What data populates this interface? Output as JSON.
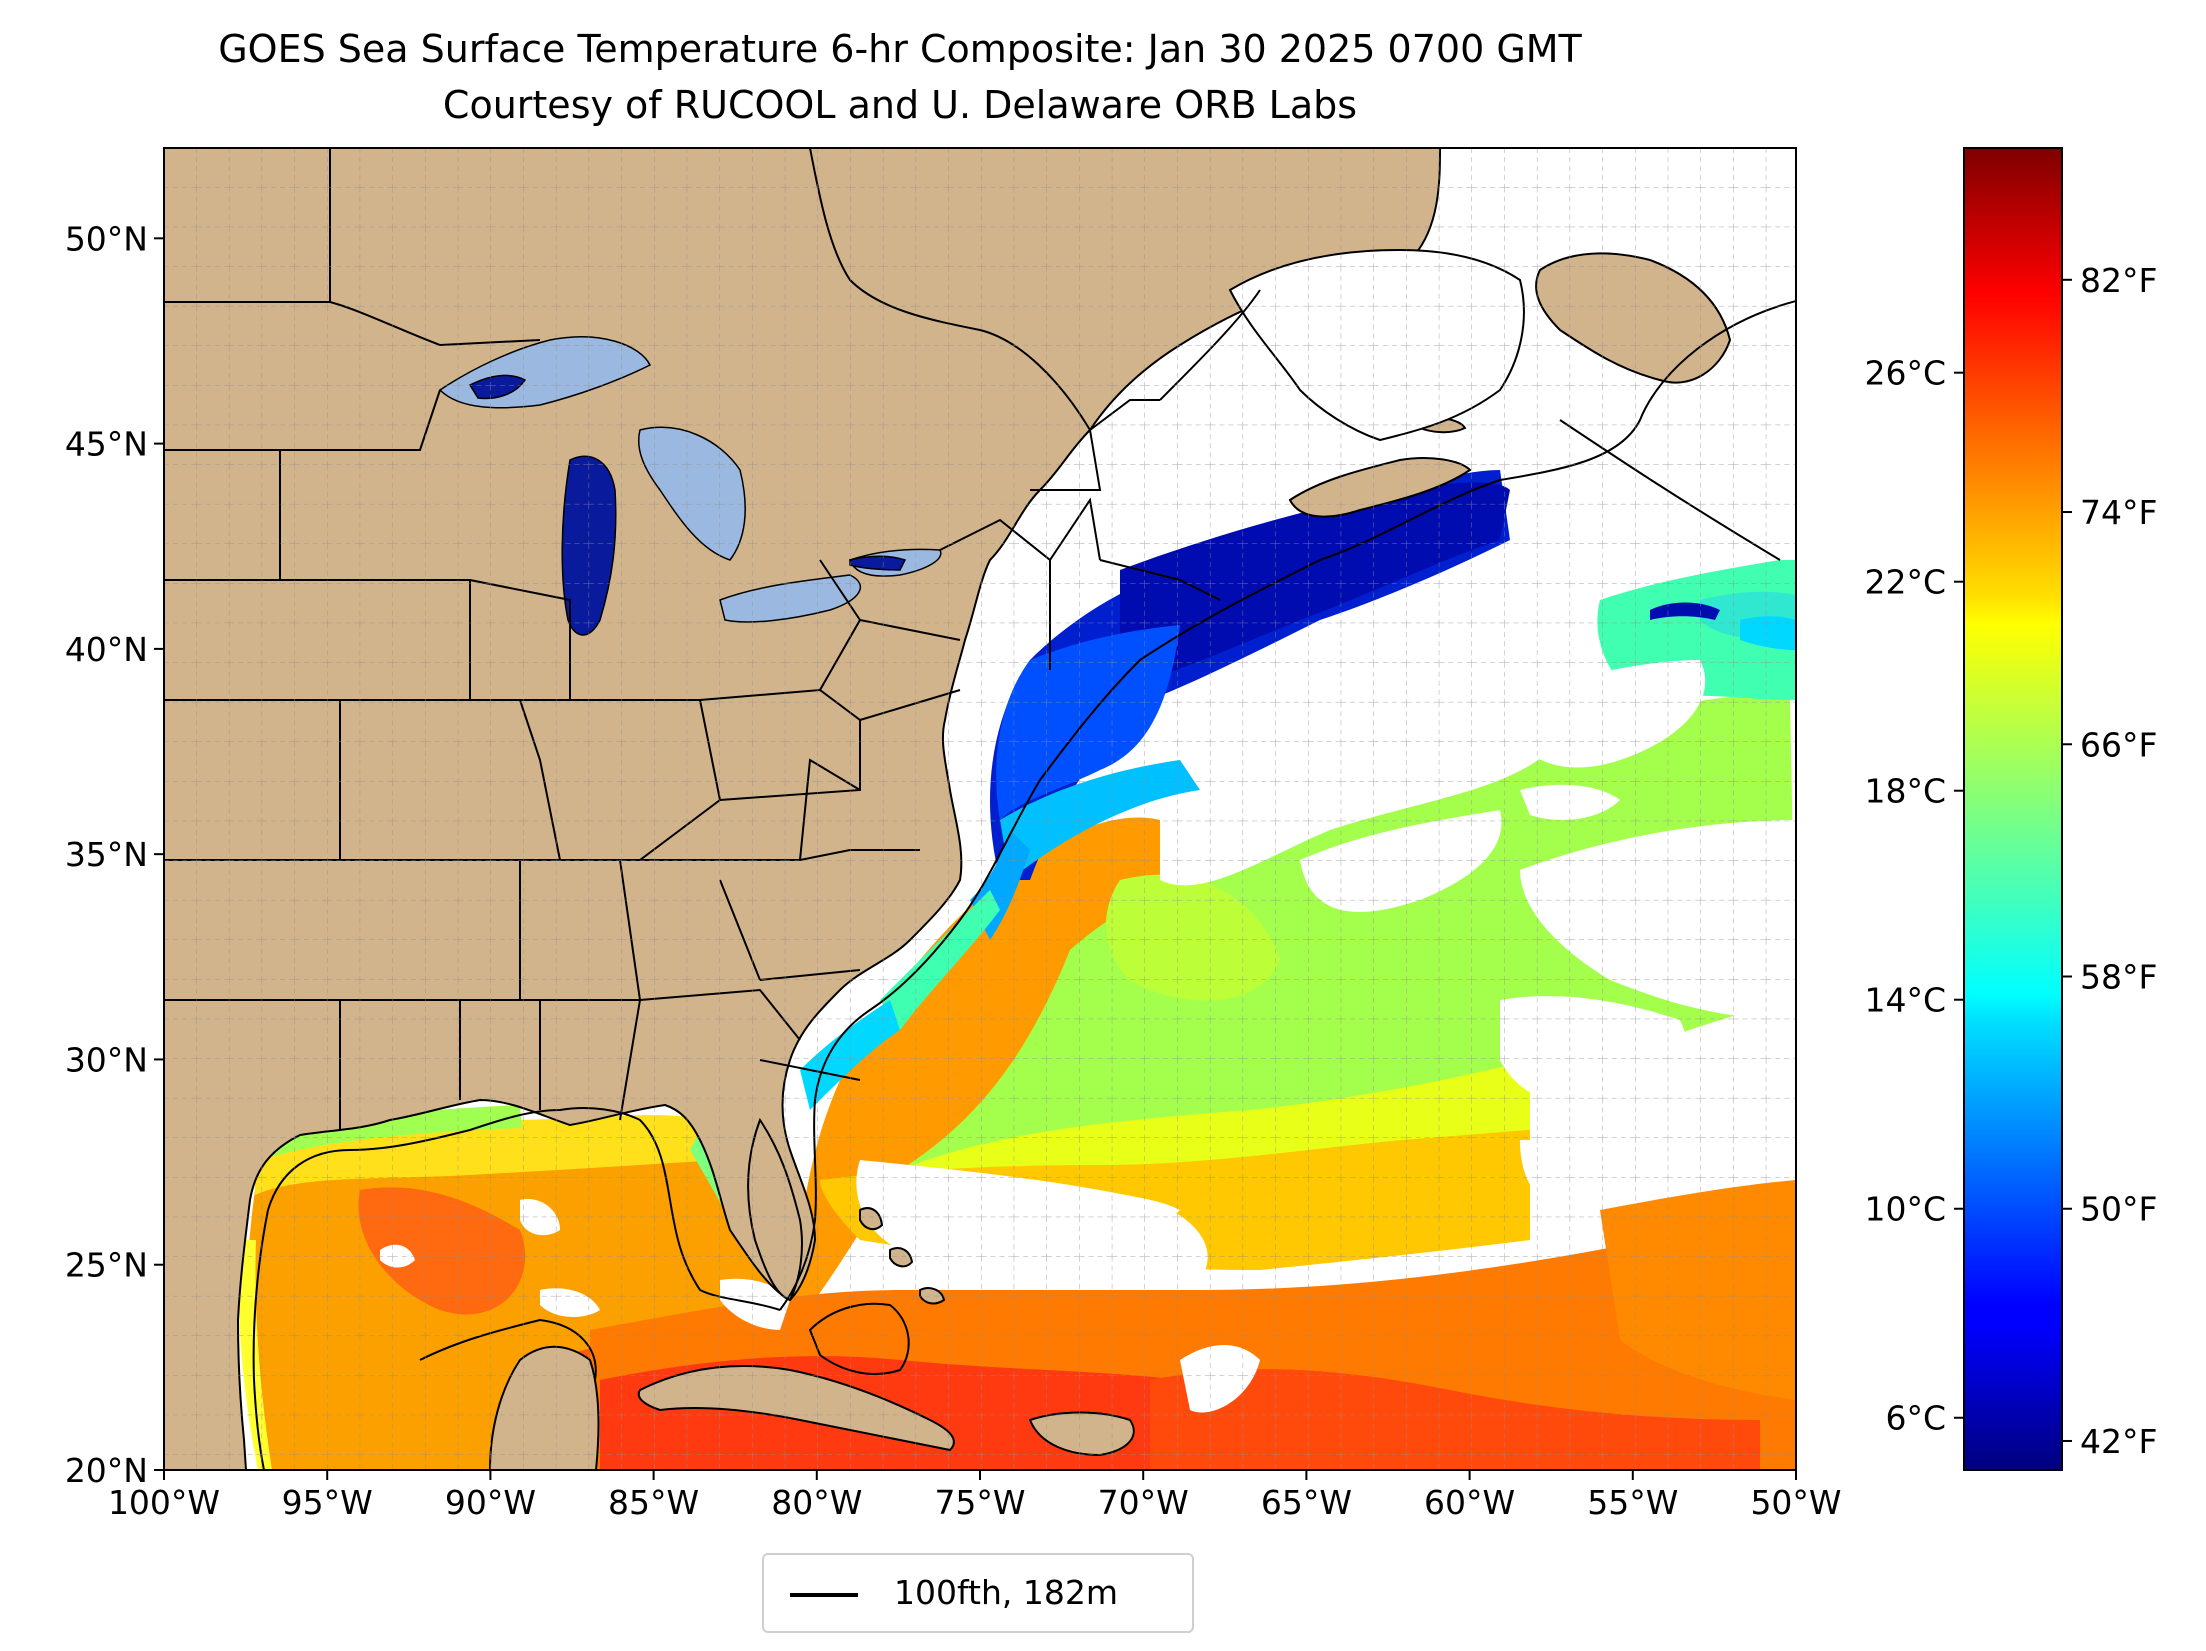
{
  "title": {
    "line1": "GOES Sea Surface Temperature 6-hr Composite: Jan 30 2025 0700 GMT",
    "line2": "Courtesy of RUCOOL and U. Delaware ORB Labs"
  },
  "map": {
    "lon_range": [
      -100,
      -50
    ],
    "lat_range": [
      20,
      52.2
    ],
    "lon_ticks": [
      {
        "value": -100,
        "label": "100°W"
      },
      {
        "value": -95,
        "label": "95°W"
      },
      {
        "value": -90,
        "label": "90°W"
      },
      {
        "value": -85,
        "label": "85°W"
      },
      {
        "value": -80,
        "label": "80°W"
      },
      {
        "value": -75,
        "label": "75°W"
      },
      {
        "value": -70,
        "label": "70°W"
      },
      {
        "value": -65,
        "label": "65°W"
      },
      {
        "value": -60,
        "label": "60°W"
      },
      {
        "value": -55,
        "label": "55°W"
      },
      {
        "value": -50,
        "label": "50°W"
      }
    ],
    "lat_ticks": [
      {
        "value": 20,
        "label": "20°N"
      },
      {
        "value": 25,
        "label": "25°N"
      },
      {
        "value": 30,
        "label": "30°N"
      },
      {
        "value": 35,
        "label": "35°N"
      },
      {
        "value": 40,
        "label": "40°N"
      },
      {
        "value": 45,
        "label": "45°N"
      },
      {
        "value": 50,
        "label": "50°N"
      }
    ],
    "grid": true,
    "land_color": "#d2b48c",
    "lake_color": "#9bb8e0"
  },
  "colorbar": {
    "colormap": "jet",
    "range_c": [
      5,
      30.3
    ],
    "celsius_ticks": [
      {
        "value": 6,
        "label": "6°C"
      },
      {
        "value": 10,
        "label": "10°C"
      },
      {
        "value": 14,
        "label": "14°C"
      },
      {
        "value": 18,
        "label": "18°C"
      },
      {
        "value": 22,
        "label": "22°C"
      },
      {
        "value": 26,
        "label": "26°C"
      }
    ],
    "fahrenheit_ticks": [
      {
        "value": 42,
        "label": "42°F"
      },
      {
        "value": 50,
        "label": "50°F"
      },
      {
        "value": 58,
        "label": "58°F"
      },
      {
        "value": 66,
        "label": "66°F"
      },
      {
        "value": 74,
        "label": "74°F"
      },
      {
        "value": 82,
        "label": "82°F"
      }
    ]
  },
  "legend": {
    "label": "100fth, 182m",
    "placement": "bottom-center"
  }
}
